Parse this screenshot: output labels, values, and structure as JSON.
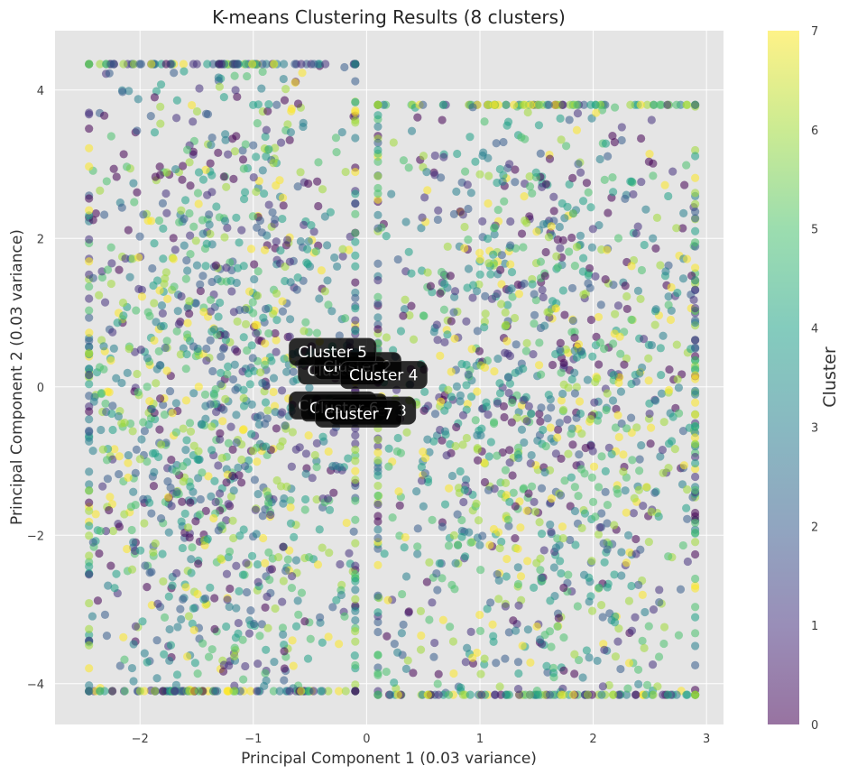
{
  "chart_data": {
    "type": "scatter",
    "title": "K-means Clustering Results (8 clusters)",
    "xlabel": "Principal Component 1 (0.03 variance)",
    "ylabel": "Principal Component 2 (0.03 variance)",
    "xlim": [
      -2.75,
      3.15
    ],
    "ylim": [
      -4.55,
      4.8
    ],
    "x_ticks": [
      -2,
      -1,
      0,
      1,
      2,
      3
    ],
    "y_ticks": [
      -4,
      -2,
      0,
      2,
      4
    ],
    "grid": true,
    "point_count_approx": 20000,
    "point_alpha": 0.55,
    "colormap": "viridis",
    "colors": {
      "plot_background": "#e5e5e5",
      "grid": "#ffffff",
      "label_box": "#000000",
      "label_text": "#ffffff"
    },
    "point_clouds": [
      {
        "x_range": [
          -2.45,
          -0.1
        ],
        "y_range": [
          -4.1,
          4.35
        ]
      },
      {
        "x_range": [
          0.1,
          2.9
        ],
        "y_range": [
          -4.15,
          3.8
        ]
      }
    ],
    "colorbar": {
      "label": "Cluster",
      "min": 0,
      "max": 7,
      "ticks": [
        0,
        1,
        2,
        3,
        4,
        5,
        6,
        7
      ]
    },
    "centroids": [
      {
        "cluster": 0,
        "label": "Cluster 0",
        "x": -0.22,
        "y": 0.22
      },
      {
        "cluster": 1,
        "label": "Cluster 1",
        "x": -0.3,
        "y": -0.25
      },
      {
        "cluster": 2,
        "label": "Cluster 2",
        "x": -0.08,
        "y": 0.28
      },
      {
        "cluster": 3,
        "label": "Cluster 3",
        "x": 0.05,
        "y": -0.32
      },
      {
        "cluster": 6,
        "label": "Cluster 6",
        "x": -0.2,
        "y": -0.28
      },
      {
        "cluster": 5,
        "label": "Cluster 5",
        "x": -0.3,
        "y": 0.47
      },
      {
        "cluster": 4,
        "label": "Cluster 4",
        "x": 0.15,
        "y": 0.16
      },
      {
        "cluster": 7,
        "label": "Cluster 7",
        "x": -0.07,
        "y": -0.36
      }
    ]
  }
}
